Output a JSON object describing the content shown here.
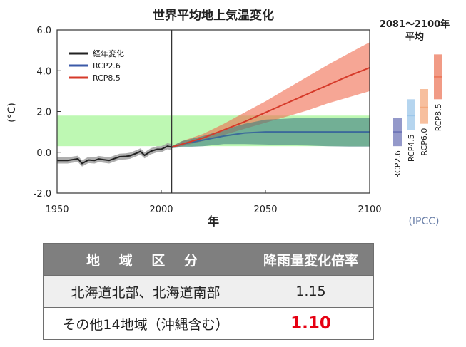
{
  "chart_data": {
    "type": "line",
    "title": "世界平均地上気温変化",
    "xlabel": "年",
    "ylabel": "(°C)",
    "xlim": [
      1950,
      2100
    ],
    "ylim": [
      -2.0,
      6.0
    ],
    "x_ticks": [
      "1950",
      "2000",
      "2050",
      "2100"
    ],
    "y_ticks": [
      "6.0",
      "4.0",
      "2.0",
      "0.0",
      "-2.0"
    ],
    "highlight_band": [
      0.3,
      1.8
    ],
    "divider_year": 2005,
    "legend": [
      "経年変化",
      "RCP2.6",
      "RCP8.5"
    ],
    "series": [
      {
        "name": "経年変化",
        "color": "#222222",
        "x": [
          1950,
          1955,
          1960,
          1962,
          1965,
          1968,
          1970,
          1975,
          1980,
          1983,
          1985,
          1988,
          1990,
          1992,
          1995,
          1998,
          2000,
          2003,
          2005
        ],
        "values": [
          -0.4,
          -0.4,
          -0.32,
          -0.55,
          -0.38,
          -0.4,
          -0.33,
          -0.4,
          -0.22,
          -0.2,
          -0.17,
          -0.05,
          0.04,
          -0.15,
          0.05,
          0.15,
          0.15,
          0.3,
          0.25
        ],
        "band": 0.15
      },
      {
        "name": "RCP2.6",
        "color": "#3b6a9a",
        "x": [
          2005,
          2010,
          2020,
          2030,
          2040,
          2050,
          2060,
          2070,
          2080,
          2090,
          2100
        ],
        "values": [
          0.25,
          0.4,
          0.6,
          0.8,
          0.95,
          1.0,
          1.0,
          1.0,
          1.0,
          1.0,
          1.0
        ],
        "lower": [
          0.2,
          0.25,
          0.3,
          0.4,
          0.4,
          0.38,
          0.35,
          0.33,
          0.3,
          0.28,
          0.28
        ],
        "upper": [
          0.3,
          0.55,
          0.8,
          1.1,
          1.4,
          1.6,
          1.65,
          1.7,
          1.7,
          1.7,
          1.7
        ]
      },
      {
        "name": "RCP8.5",
        "color": "#d63a2a",
        "x": [
          2005,
          2010,
          2020,
          2030,
          2040,
          2050,
          2060,
          2070,
          2080,
          2090,
          2100
        ],
        "values": [
          0.25,
          0.4,
          0.7,
          1.1,
          1.5,
          1.95,
          2.4,
          2.85,
          3.3,
          3.75,
          4.15
        ],
        "lower": [
          0.2,
          0.3,
          0.55,
          0.85,
          1.15,
          1.45,
          1.75,
          2.05,
          2.4,
          2.7,
          3.0
        ],
        "upper": [
          0.3,
          0.55,
          0.9,
          1.4,
          1.95,
          2.5,
          3.1,
          3.7,
          4.3,
          4.85,
          5.4
        ]
      }
    ],
    "side_panel": {
      "title_line1": "2081～2100年",
      "title_line2": "平均",
      "source": "(IPCC)",
      "bars": [
        {
          "name": "RCP2.6",
          "mean": 1.0,
          "low": 0.3,
          "high": 1.7,
          "color": "#7077b8"
        },
        {
          "name": "RCP4.5",
          "mean": 1.8,
          "low": 1.1,
          "high": 2.6,
          "color": "#9cc7ea"
        },
        {
          "name": "RCP6.0",
          "mean": 2.2,
          "low": 1.4,
          "high": 3.1,
          "color": "#f4a97d"
        },
        {
          "name": "RCP8.5",
          "mean": 3.7,
          "low": 2.6,
          "high": 4.8,
          "color": "#ec7a5e"
        }
      ]
    }
  },
  "table": {
    "headers": [
      "地 域 区 分",
      "降雨量変化倍率"
    ],
    "rows": [
      {
        "region": "北海道北部、北海道南部",
        "factor": "1.15"
      },
      {
        "region": "その他14地域（沖縄含む）",
        "factor": "1.10"
      }
    ]
  }
}
